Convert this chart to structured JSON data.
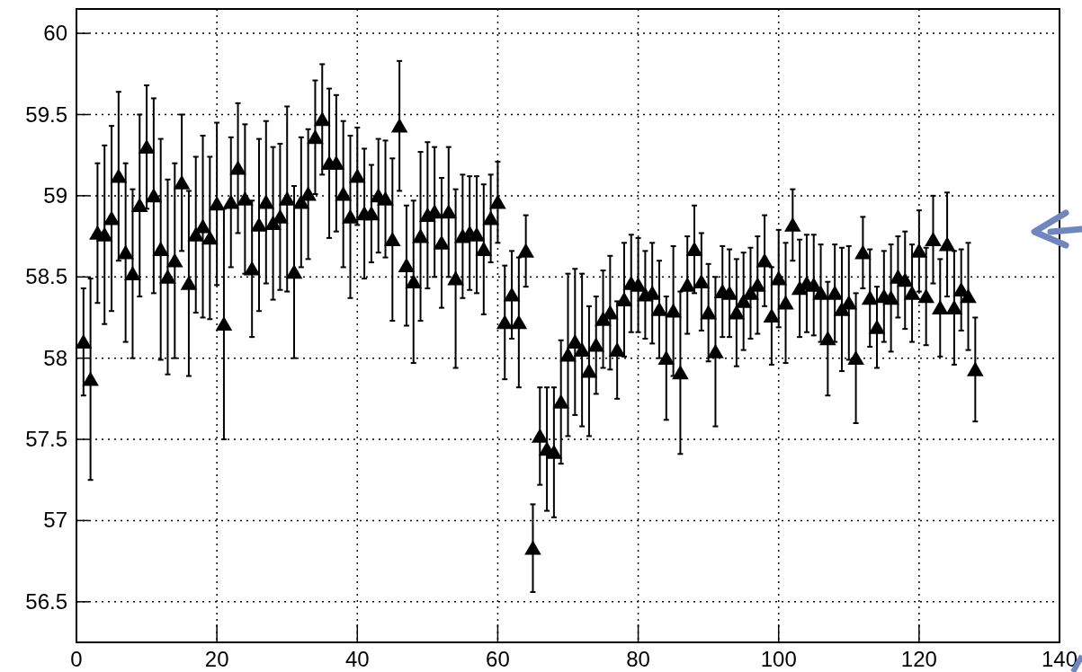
{
  "chart_data": {
    "type": "scatter",
    "marker": "triangle",
    "grid": true,
    "xlim": [
      0,
      140
    ],
    "xticks": [
      0,
      20,
      40,
      60,
      80,
      100,
      120,
      140
    ],
    "ylim": [
      56.25,
      60.15
    ],
    "yticks": [
      {
        "value": 56.5,
        "label": "56.5"
      },
      57,
      {
        "value": 57.5,
        "label": "57.5"
      },
      58,
      {
        "value": 58.5,
        "label": "58.5"
      },
      59,
      {
        "value": 59.5,
        "label": "59.5"
      },
      60
    ],
    "series": [
      {
        "color": "#000000",
        "x": [
          1,
          2,
          3,
          4,
          5,
          6,
          7,
          8,
          9,
          10,
          11,
          12,
          13,
          14,
          15,
          16,
          17,
          18,
          19,
          20,
          21,
          22,
          23,
          24,
          25,
          26,
          27,
          28,
          29,
          30,
          31,
          32,
          33,
          34,
          35,
          36,
          37,
          38,
          39,
          40,
          41,
          42,
          43,
          44,
          45,
          46,
          47,
          48,
          49,
          50,
          51,
          52,
          53,
          54,
          55,
          56,
          57,
          58,
          59,
          60,
          61,
          62,
          63,
          64,
          65,
          66,
          67,
          68,
          69,
          70,
          71,
          72,
          73,
          74,
          75,
          76,
          77,
          78,
          79,
          80,
          81,
          82,
          83,
          84,
          85,
          86,
          87,
          88,
          89,
          90,
          91,
          92,
          93,
          94,
          95,
          96,
          97,
          98,
          99,
          100,
          101,
          102,
          103,
          104,
          105,
          106,
          107,
          108,
          109,
          110,
          111,
          112,
          113,
          114,
          115,
          116,
          117,
          118,
          119,
          120,
          121,
          122,
          123,
          124,
          125,
          126,
          127,
          128
        ],
        "values": [
          58.1,
          57.87,
          58.77,
          58.76,
          58.86,
          59.12,
          58.65,
          58.52,
          58.94,
          59.3,
          59.0,
          58.67,
          58.5,
          58.6,
          59.08,
          58.46,
          58.76,
          58.81,
          58.74,
          58.95,
          58.21,
          58.96,
          59.17,
          58.98,
          58.55,
          58.82,
          58.96,
          58.83,
          58.87,
          58.98,
          58.53,
          58.96,
          59.01,
          59.36,
          59.47,
          59.2,
          59.2,
          59.01,
          58.87,
          59.12,
          58.89,
          58.89,
          59.0,
          58.98,
          58.73,
          59.43,
          58.57,
          58.47,
          58.75,
          58.88,
          58.9,
          58.71,
          58.9,
          58.49,
          58.75,
          58.77,
          58.76,
          58.67,
          58.86,
          58.96,
          58.22,
          58.39,
          58.22,
          58.66,
          56.83,
          57.52,
          57.44,
          57.42,
          57.73,
          58.02,
          58.1,
          58.05,
          57.92,
          58.08,
          58.24,
          58.28,
          58.05,
          58.36,
          58.46,
          58.45,
          58.39,
          58.4,
          58.3,
          58.0,
          58.29,
          57.91,
          58.45,
          58.67,
          58.47,
          58.28,
          58.04,
          58.41,
          58.4,
          58.28,
          58.35,
          58.4,
          58.45,
          58.6,
          58.26,
          58.49,
          58.34,
          58.82,
          58.43,
          58.46,
          58.45,
          58.4,
          58.12,
          58.4,
          58.3,
          58.34,
          58.0,
          58.65,
          58.37,
          58.19,
          58.38,
          58.37,
          58.5,
          58.48,
          58.4,
          58.66,
          58.38,
          58.73,
          58.31,
          58.7,
          58.31,
          58.42,
          58.38,
          57.93
        ],
        "errors": [
          0.33,
          0.62,
          0.43,
          0.55,
          0.57,
          0.52,
          0.55,
          0.52,
          0.56,
          0.38,
          0.6,
          0.68,
          0.6,
          0.6,
          0.42,
          0.57,
          0.48,
          0.56,
          0.5,
          0.5,
          0.71,
          0.4,
          0.4,
          0.46,
          0.42,
          0.53,
          0.5,
          0.47,
          0.45,
          0.57,
          0.53,
          0.4,
          0.4,
          0.35,
          0.34,
          0.46,
          0.42,
          0.45,
          0.5,
          0.3,
          0.4,
          0.3,
          0.35,
          0.36,
          0.5,
          0.4,
          0.37,
          0.5,
          0.52,
          0.45,
          0.4,
          0.4,
          0.4,
          0.55,
          0.38,
          0.35,
          0.36,
          0.4,
          0.27,
          0.25,
          0.35,
          0.27,
          0.4,
          0.22,
          0.27,
          0.3,
          0.38,
          0.4,
          0.38,
          0.5,
          0.45,
          0.47,
          0.4,
          0.3,
          0.3,
          0.35,
          0.3,
          0.35,
          0.3,
          0.29,
          0.27,
          0.31,
          0.3,
          0.38,
          0.4,
          0.5,
          0.3,
          0.27,
          0.3,
          0.3,
          0.46,
          0.28,
          0.27,
          0.33,
          0.3,
          0.28,
          0.3,
          0.28,
          0.3,
          0.3,
          0.37,
          0.22,
          0.3,
          0.3,
          0.31,
          0.3,
          0.35,
          0.3,
          0.38,
          0.35,
          0.4,
          0.22,
          0.3,
          0.25,
          0.28,
          0.33,
          0.25,
          0.3,
          0.3,
          0.25,
          0.3,
          0.27,
          0.3,
          0.32,
          0.35,
          0.25,
          0.33,
          0.32
        ]
      }
    ]
  }
}
